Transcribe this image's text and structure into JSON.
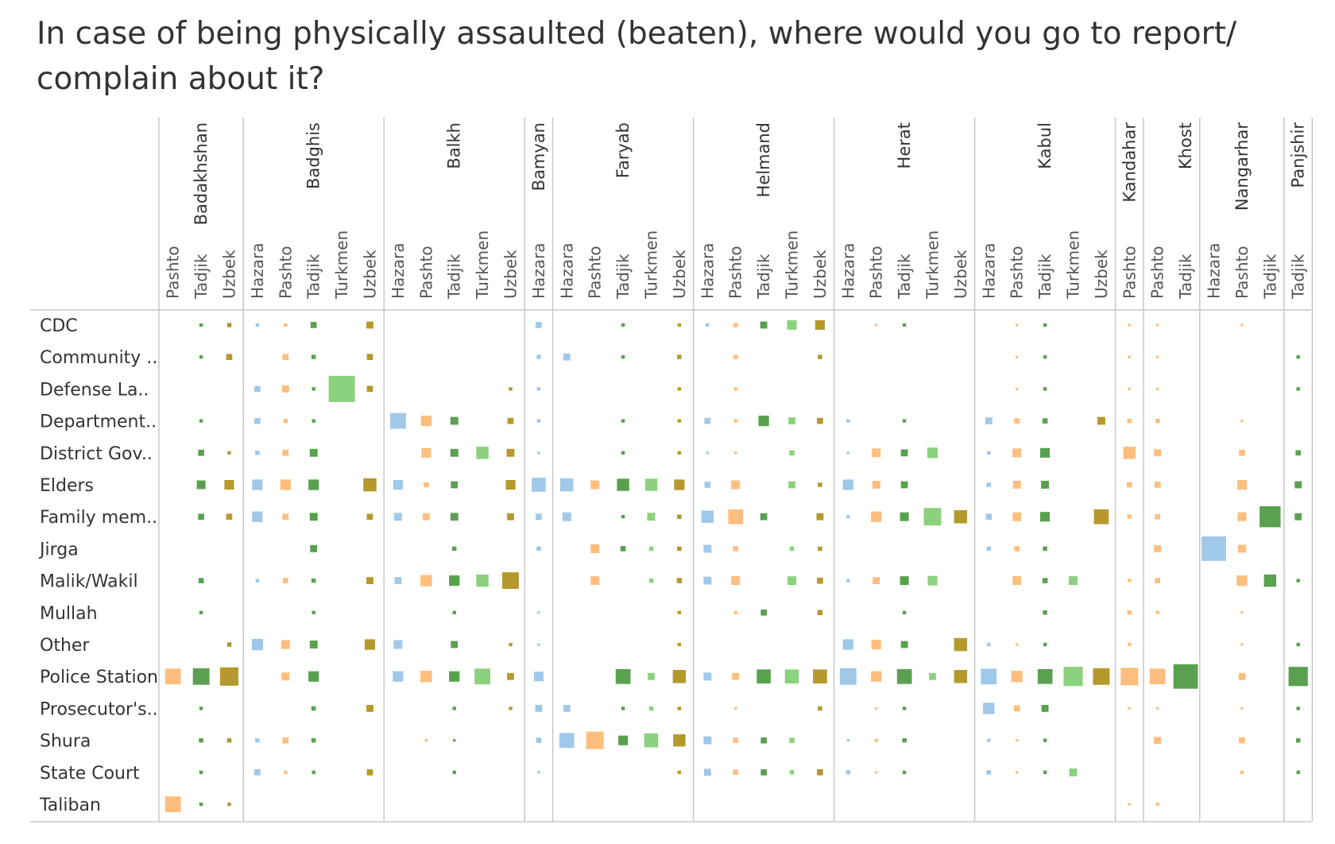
{
  "title": "In case of being physically assaulted (beaten), where would you go to report/ complain about it?",
  "colors": {
    "Hazara": "#a0c8e8",
    "Pashto": "#ffbe7d",
    "Tadjik": "#59a14f",
    "Turkmen": "#8cd17d",
    "Uzbek": "#b6992d",
    "grid": "#c8c8c8"
  },
  "chart_data": {
    "type": "heatmap",
    "encoding": "square size = relative share of respondents",
    "title": "In case of being physically assaulted (beaten), where would you go to report/ complain about it?",
    "provinces": [
      {
        "name": "Badakhshan",
        "ethnicities": [
          "Pashto",
          "Tadjik",
          "Uzbek"
        ]
      },
      {
        "name": "Badghis",
        "ethnicities": [
          "Hazara",
          "Pashto",
          "Tadjik",
          "Turkmen",
          "Uzbek"
        ]
      },
      {
        "name": "Balkh",
        "ethnicities": [
          "Hazara",
          "Pashto",
          "Tadjik",
          "Turkmen",
          "Uzbek"
        ]
      },
      {
        "name": "Bamyan",
        "ethnicities": [
          "Hazara"
        ]
      },
      {
        "name": "Faryab",
        "ethnicities": [
          "Hazara",
          "Pashto",
          "Tadjik",
          "Turkmen",
          "Uzbek"
        ]
      },
      {
        "name": "Helmand",
        "ethnicities": [
          "Hazara",
          "Pashto",
          "Tadjik",
          "Turkmen",
          "Uzbek"
        ]
      },
      {
        "name": "Herat",
        "ethnicities": [
          "Hazara",
          "Pashto",
          "Tadjik",
          "Turkmen",
          "Uzbek"
        ]
      },
      {
        "name": "Kabul",
        "ethnicities": [
          "Hazara",
          "Pashto",
          "Tadjik",
          "Turkmen",
          "Uzbek"
        ]
      },
      {
        "name": "Kandahar",
        "ethnicities": [
          "Pashto"
        ]
      },
      {
        "name": "Khost",
        "ethnicities": [
          "Pashto",
          "Tadjik"
        ]
      },
      {
        "name": "Nangarhar",
        "ethnicities": [
          "Hazara",
          "Pashto",
          "Tadjik"
        ]
      },
      {
        "name": "Panjshir",
        "ethnicities": [
          "Tadjik"
        ]
      }
    ],
    "rows": [
      "CDC",
      "Community ..",
      "Defense La..",
      "Department..",
      "District Gov..",
      "Elders",
      "Family mem..",
      "Jirga",
      "Malik/Wakil",
      "Mullah",
      "Other",
      "Police Station",
      "Prosecutor's..",
      "Shura",
      "State Court",
      "Taliban"
    ],
    "values": [
      [
        0,
        4,
        5,
        4,
        4,
        7,
        0,
        8,
        0,
        0,
        0,
        0,
        0,
        7,
        0,
        0,
        4,
        0,
        4,
        4,
        5,
        8,
        11,
        11,
        0,
        3,
        4,
        0,
        0,
        0,
        3,
        4,
        0,
        0,
        3,
        3,
        0,
        0,
        3,
        0,
        0
      ],
      [
        0,
        4,
        7,
        0,
        7,
        5,
        0,
        7,
        0,
        0,
        0,
        0,
        0,
        5,
        8,
        0,
        4,
        0,
        5,
        0,
        5,
        0,
        0,
        5,
        0,
        0,
        0,
        0,
        0,
        0,
        3,
        4,
        0,
        0,
        3,
        3,
        0,
        0,
        0,
        0,
        4
      ],
      [
        0,
        0,
        0,
        7,
        8,
        4,
        30,
        7,
        0,
        0,
        0,
        0,
        4,
        4,
        0,
        0,
        0,
        0,
        4,
        0,
        4,
        0,
        0,
        0,
        0,
        0,
        0,
        0,
        0,
        0,
        3,
        4,
        0,
        0,
        3,
        3,
        0,
        0,
        0,
        0,
        4
      ],
      [
        0,
        4,
        0,
        7,
        5,
        4,
        0,
        0,
        18,
        12,
        9,
        0,
        7,
        4,
        0,
        0,
        4,
        0,
        4,
        7,
        4,
        12,
        8,
        7,
        4,
        0,
        4,
        0,
        0,
        8,
        6,
        6,
        0,
        9,
        5,
        5,
        0,
        0,
        3,
        0,
        0
      ],
      [
        0,
        7,
        4,
        5,
        7,
        9,
        0,
        0,
        0,
        11,
        9,
        14,
        9,
        3,
        0,
        0,
        4,
        0,
        4,
        3,
        3,
        0,
        6,
        0,
        3,
        10,
        8,
        12,
        0,
        4,
        10,
        11,
        0,
        0,
        14,
        8,
        0,
        0,
        7,
        0,
        6
      ],
      [
        0,
        10,
        11,
        12,
        12,
        12,
        0,
        15,
        11,
        6,
        8,
        0,
        11,
        16,
        15,
        10,
        14,
        14,
        12,
        7,
        10,
        0,
        8,
        5,
        12,
        9,
        8,
        0,
        0,
        5,
        9,
        9,
        0,
        0,
        6,
        7,
        0,
        0,
        11,
        0,
        8
      ],
      [
        0,
        7,
        7,
        12,
        7,
        9,
        0,
        7,
        9,
        8,
        9,
        0,
        8,
        7,
        10,
        0,
        4,
        9,
        5,
        14,
        17,
        8,
        0,
        8,
        4,
        12,
        10,
        20,
        15,
        7,
        10,
        11,
        0,
        17,
        5,
        6,
        0,
        0,
        10,
        24,
        8
      ],
      [
        0,
        0,
        0,
        0,
        0,
        8,
        0,
        0,
        0,
        0,
        5,
        0,
        0,
        5,
        0,
        10,
        6,
        5,
        5,
        9,
        6,
        0,
        5,
        5,
        0,
        0,
        0,
        0,
        0,
        5,
        6,
        5,
        0,
        0,
        0,
        8,
        0,
        28,
        9,
        0,
        0
      ],
      [
        0,
        6,
        0,
        4,
        6,
        5,
        0,
        8,
        8,
        13,
        12,
        14,
        19,
        0,
        0,
        10,
        0,
        5,
        6,
        9,
        10,
        0,
        10,
        7,
        4,
        8,
        10,
        11,
        0,
        0,
        10,
        6,
        10,
        0,
        4,
        6,
        0,
        0,
        12,
        14,
        4
      ],
      [
        0,
        4,
        0,
        0,
        0,
        4,
        0,
        0,
        0,
        0,
        4,
        0,
        0,
        3,
        0,
        0,
        0,
        0,
        4,
        0,
        4,
        7,
        0,
        6,
        0,
        0,
        4,
        0,
        0,
        0,
        0,
        5,
        0,
        0,
        5,
        4,
        0,
        0,
        3,
        0,
        0
      ],
      [
        0,
        0,
        5,
        13,
        10,
        9,
        0,
        12,
        10,
        0,
        8,
        0,
        4,
        3,
        0,
        0,
        0,
        0,
        4,
        0,
        0,
        0,
        0,
        0,
        12,
        11,
        8,
        0,
        15,
        4,
        3,
        4,
        0,
        0,
        4,
        0,
        0,
        0,
        3,
        0,
        4
      ],
      [
        18,
        19,
        21,
        0,
        9,
        12,
        0,
        0,
        12,
        13,
        12,
        18,
        8,
        11,
        0,
        0,
        17,
        8,
        15,
        9,
        8,
        16,
        16,
        16,
        19,
        12,
        17,
        8,
        15,
        18,
        13,
        17,
        22,
        19,
        20,
        18,
        28,
        0,
        8,
        0,
        22
      ],
      [
        0,
        4,
        0,
        0,
        0,
        5,
        0,
        8,
        0,
        0,
        4,
        0,
        4,
        8,
        8,
        0,
        4,
        5,
        4,
        0,
        3,
        0,
        0,
        5,
        0,
        3,
        4,
        0,
        0,
        13,
        7,
        8,
        0,
        0,
        3,
        3,
        0,
        0,
        3,
        0,
        4
      ],
      [
        0,
        5,
        5,
        5,
        7,
        5,
        0,
        0,
        0,
        3,
        3,
        0,
        0,
        6,
        17,
        20,
        11,
        16,
        14,
        9,
        6,
        7,
        6,
        0,
        3,
        4,
        5,
        0,
        0,
        4,
        3,
        4,
        0,
        0,
        0,
        8,
        0,
        0,
        7,
        0,
        5
      ],
      [
        0,
        4,
        0,
        7,
        4,
        4,
        0,
        7,
        0,
        0,
        4,
        0,
        0,
        3,
        0,
        0,
        0,
        0,
        4,
        8,
        6,
        7,
        5,
        7,
        5,
        3,
        4,
        0,
        0,
        5,
        3,
        4,
        9,
        0,
        0,
        0,
        0,
        0,
        4,
        0,
        4
      ],
      [
        18,
        4,
        4,
        0,
        0,
        0,
        0,
        0,
        0,
        0,
        0,
        0,
        0,
        0,
        0,
        0,
        0,
        0,
        0,
        0,
        0,
        0,
        0,
        0,
        0,
        0,
        0,
        0,
        0,
        0,
        0,
        0,
        0,
        0,
        3,
        4,
        0,
        0,
        0,
        0,
        0
      ]
    ]
  }
}
